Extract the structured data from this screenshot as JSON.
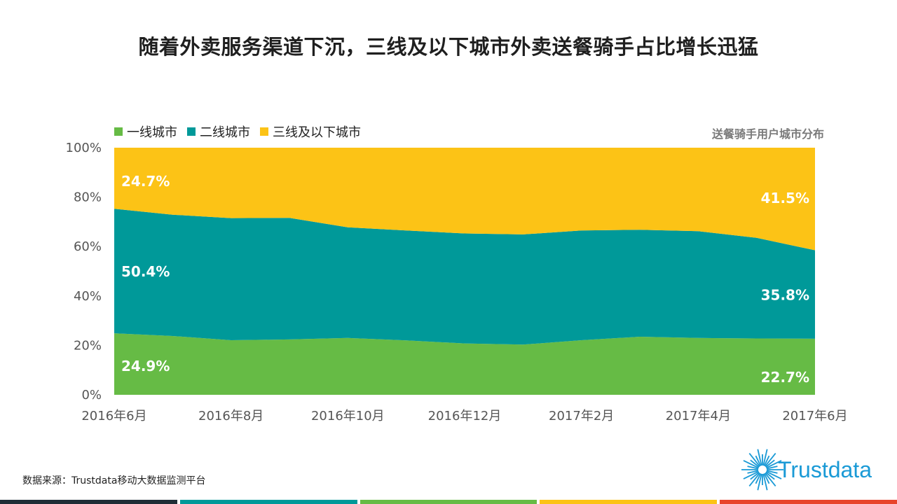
{
  "title": "随着外卖服务渠道下沉，三线及以下城市外卖送餐骑手占比增长迅猛",
  "subtitle": "送餐骑手用户城市分布",
  "source": "数据来源：Trustdata移动大数据监测平台",
  "logo_text": "Trustdata",
  "colors": {
    "tier1": "#66bb45",
    "tier2": "#009999",
    "tier3": "#fcc316",
    "bottom_bar": [
      "#1f2d36",
      "#009999",
      "#66bb45",
      "#fcc316",
      "#e8452c"
    ]
  },
  "chart_data": {
    "type": "area",
    "stacked": true,
    "x": [
      "2016年6月",
      "2016年7月",
      "2016年8月",
      "2016年9月",
      "2016年10月",
      "2016年11月",
      "2016年12月",
      "2017年1月",
      "2017年2月",
      "2017年3月",
      "2017年4月",
      "2017年5月",
      "2017年6月"
    ],
    "xtick_labels": [
      "2016年6月",
      "2016年8月",
      "2016年10月",
      "2016年12月",
      "2017年2月",
      "2017年4月",
      "2017年6月"
    ],
    "ylim": [
      0,
      100
    ],
    "yticks": [
      "0%",
      "20%",
      "40%",
      "60%",
      "80%",
      "100%"
    ],
    "legend_position": "top-left",
    "series": [
      {
        "name": "一线城市",
        "values": [
          24.9,
          23.8,
          22.1,
          22.4,
          23.0,
          22.0,
          20.8,
          20.3,
          22.1,
          23.5,
          23.0,
          22.8,
          22.7
        ]
      },
      {
        "name": "二线城市",
        "values": [
          50.4,
          49.1,
          49.4,
          49.2,
          44.8,
          44.5,
          44.5,
          44.6,
          44.4,
          43.3,
          43.2,
          40.7,
          35.8
        ]
      },
      {
        "name": "三线及以下城市",
        "values": [
          24.7,
          27.1,
          28.5,
          28.4,
          32.2,
          33.5,
          34.7,
          35.1,
          33.5,
          33.2,
          33.8,
          36.5,
          41.5
        ]
      }
    ],
    "data_labels": [
      {
        "series": 0,
        "index": 0,
        "text": "24.9%"
      },
      {
        "series": 1,
        "index": 0,
        "text": "50.4%"
      },
      {
        "series": 2,
        "index": 0,
        "text": "24.7%"
      },
      {
        "series": 0,
        "index": 12,
        "text": "22.7%"
      },
      {
        "series": 1,
        "index": 12,
        "text": "35.8%"
      },
      {
        "series": 2,
        "index": 12,
        "text": "41.5%"
      }
    ]
  }
}
